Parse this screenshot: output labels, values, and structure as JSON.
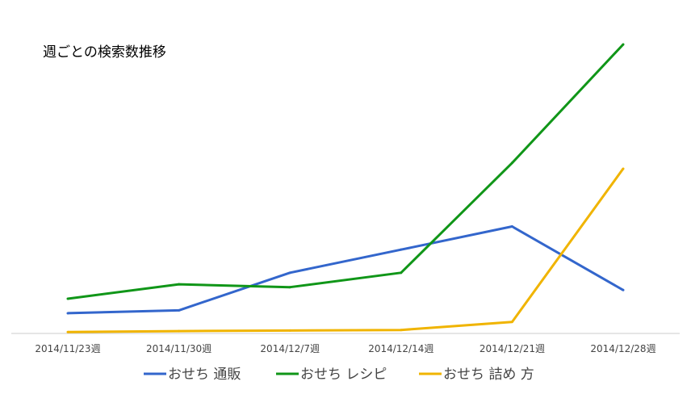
{
  "chart_data": {
    "type": "line",
    "title": "週ごとの検索数推移",
    "xlabel": "",
    "ylabel": "",
    "categories": [
      "2014/11/23週",
      "2014/11/30週",
      "2014/12/7週",
      "2014/12/14週",
      "2014/12/21週",
      "2014/12/28週"
    ],
    "ylim": [
      0,
      100
    ],
    "grid": false,
    "legend_position": "bottom",
    "series": [
      {
        "name": "おせち 通販",
        "color": "#3366cc",
        "values": [
          7,
          8,
          21,
          29,
          37,
          15
        ]
      },
      {
        "name": "おせち レシピ",
        "color": "#109618",
        "values": [
          12,
          17,
          16,
          21,
          59,
          100
        ]
      },
      {
        "name": "おせち 詰め 方",
        "color": "#f0b400",
        "values": [
          0.5,
          0.8,
          1,
          1.2,
          4,
          57
        ]
      }
    ]
  }
}
